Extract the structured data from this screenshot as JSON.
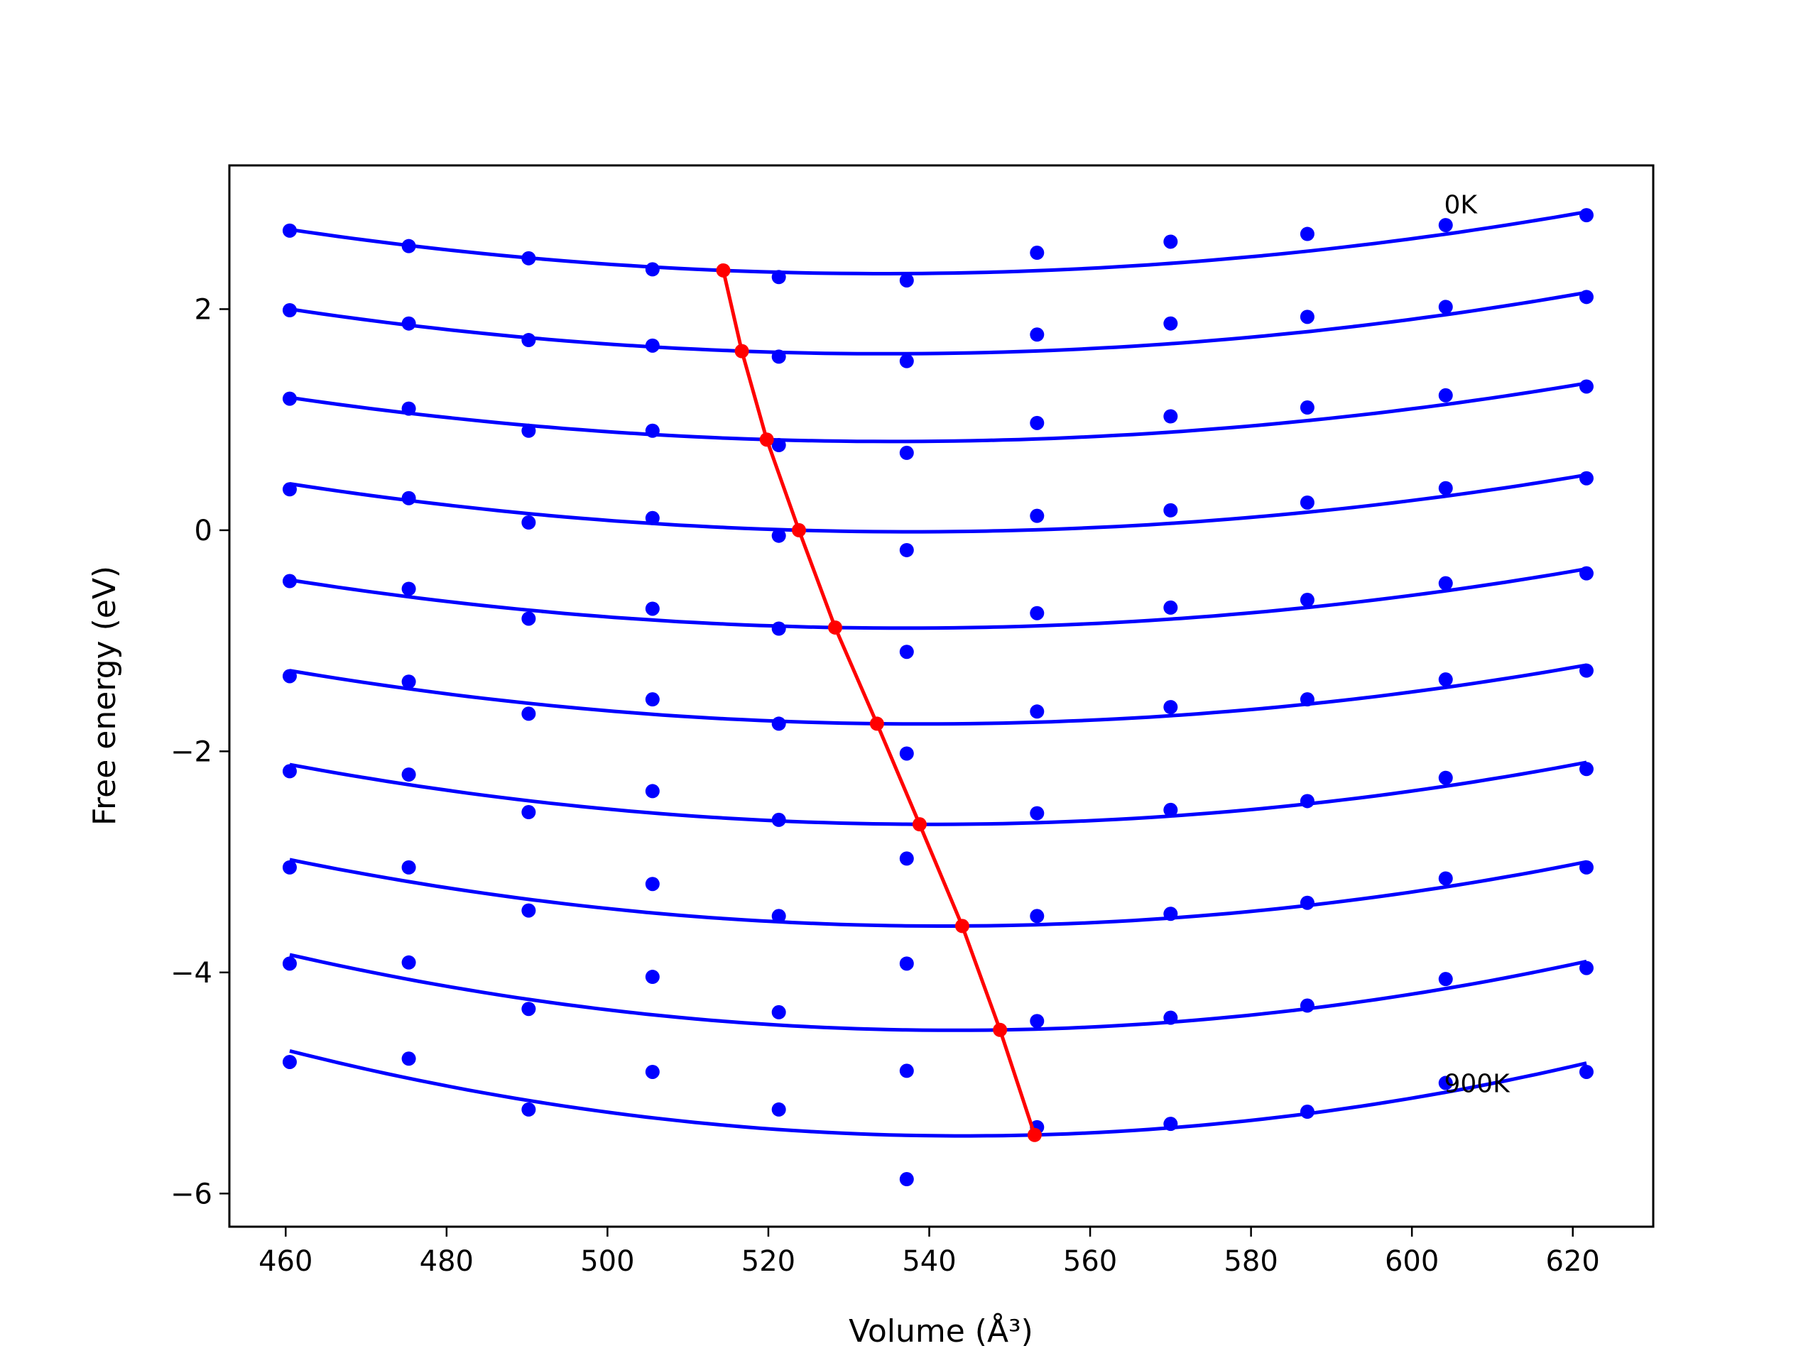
{
  "chart_data": {
    "type": "line",
    "title": "",
    "xlabel": "Volume (Å³)",
    "ylabel": "Free energy (eV)",
    "xlim": [
      453,
      630
    ],
    "ylim": [
      -6.3,
      3.3
    ],
    "xticks": [
      460,
      480,
      500,
      520,
      540,
      560,
      580,
      600,
      620
    ],
    "yticks": [
      -6,
      -4,
      -2,
      0,
      2
    ],
    "ytick_labels": [
      "−6",
      "−4",
      "−2",
      "0",
      "2"
    ],
    "grid": false,
    "annotations": [
      {
        "text": "0K",
        "x": 604,
        "y": 2.95
      },
      {
        "text": "900K",
        "x": 604,
        "y": -5.0
      }
    ],
    "colors": {
      "fit": "#0000ff",
      "points": "#0000ff",
      "minimum": "#ff0000",
      "frame": "#000000"
    },
    "volumes": [
      460.5,
      475.3,
      490.2,
      505.6,
      521.3,
      537.2,
      553.4,
      570.0,
      587.0,
      604.2,
      621.7
    ],
    "series": [
      {
        "points": [
          2.71,
          2.57,
          2.46,
          2.36,
          2.29,
          2.26,
          2.51,
          2.61,
          2.68,
          2.76,
          2.85
        ],
        "fit_curve": {
          "x": [
            460.5,
            514.4,
            621.7
          ],
          "y": [
            2.72,
            2.35,
            2.88
          ]
        }
      },
      {
        "points": [
          1.99,
          1.87,
          1.72,
          1.67,
          1.57,
          1.53,
          1.77,
          1.87,
          1.93,
          2.02,
          2.11
        ],
        "fit_curve": {
          "x": [
            460.5,
            516.7,
            621.7
          ],
          "y": [
            2.0,
            1.62,
            2.15
          ]
        }
      },
      {
        "points": [
          1.19,
          1.1,
          0.9,
          0.9,
          0.77,
          0.7,
          0.97,
          1.03,
          1.11,
          1.22,
          1.3
        ],
        "fit_curve": {
          "x": [
            460.5,
            519.8,
            621.7
          ],
          "y": [
            1.2,
            0.82,
            1.33
          ]
        }
      },
      {
        "points": [
          0.37,
          0.29,
          0.07,
          0.11,
          -0.05,
          -0.18,
          0.13,
          0.18,
          0.25,
          0.38,
          0.47
        ],
        "fit_curve": {
          "x": [
            460.5,
            523.8,
            621.7
          ],
          "y": [
            0.42,
            0.0,
            0.5
          ]
        }
      },
      {
        "points": [
          -0.46,
          -0.53,
          -0.8,
          -0.71,
          -0.89,
          -1.1,
          -0.75,
          -0.7,
          -0.63,
          -0.48,
          -0.39
        ],
        "fit_curve": {
          "x": [
            460.5,
            528.3,
            621.7
          ],
          "y": [
            -0.45,
            -0.88,
            -0.35
          ]
        }
      },
      {
        "points": [
          -1.32,
          -1.37,
          -1.66,
          -1.53,
          -1.75,
          -2.02,
          -1.64,
          -1.6,
          -1.53,
          -1.35,
          -1.27
        ],
        "fit_curve": {
          "x": [
            460.5,
            533.5,
            621.7
          ],
          "y": [
            -1.27,
            -1.75,
            -1.22
          ]
        }
      },
      {
        "points": [
          -2.18,
          -2.21,
          -2.55,
          -2.36,
          -2.62,
          -2.97,
          -2.56,
          -2.53,
          -2.45,
          -2.24,
          -2.16
        ],
        "fit_curve": {
          "x": [
            460.5,
            538.8,
            621.7
          ],
          "y": [
            -2.12,
            -2.66,
            -2.1
          ]
        }
      },
      {
        "points": [
          -3.05,
          -3.05,
          -3.44,
          -3.2,
          -3.49,
          -3.92,
          -3.49,
          -3.47,
          -3.37,
          -3.15,
          -3.05
        ],
        "fit_curve": {
          "x": [
            460.5,
            544.1,
            621.7
          ],
          "y": [
            -2.98,
            -3.58,
            -3.0
          ]
        }
      },
      {
        "points": [
          -3.92,
          -3.91,
          -4.33,
          -4.04,
          -4.36,
          -4.89,
          -4.44,
          -4.41,
          -4.3,
          -4.06,
          -3.96
        ],
        "fit_curve": {
          "x": [
            460.5,
            548.8,
            621.7
          ],
          "y": [
            -3.84,
            -4.52,
            -3.9
          ]
        }
      },
      {
        "points": [
          -4.81,
          -4.78,
          -5.24,
          -4.9,
          -5.24,
          -5.87,
          -5.4,
          -5.37,
          -5.26,
          -5.0,
          -4.9
        ],
        "fit_curve": {
          "x": [
            460.5,
            553.1,
            621.7
          ],
          "y": [
            -4.71,
            -5.47,
            -4.82
          ]
        }
      }
    ],
    "minimum_line": {
      "x": [
        514.4,
        516.7,
        519.8,
        523.8,
        528.3,
        533.5,
        538.8,
        544.1,
        548.8,
        553.1
      ],
      "y": [
        2.35,
        1.62,
        0.82,
        0.0,
        -0.88,
        -1.75,
        -2.66,
        -3.58,
        -4.52,
        -5.47
      ]
    }
  }
}
